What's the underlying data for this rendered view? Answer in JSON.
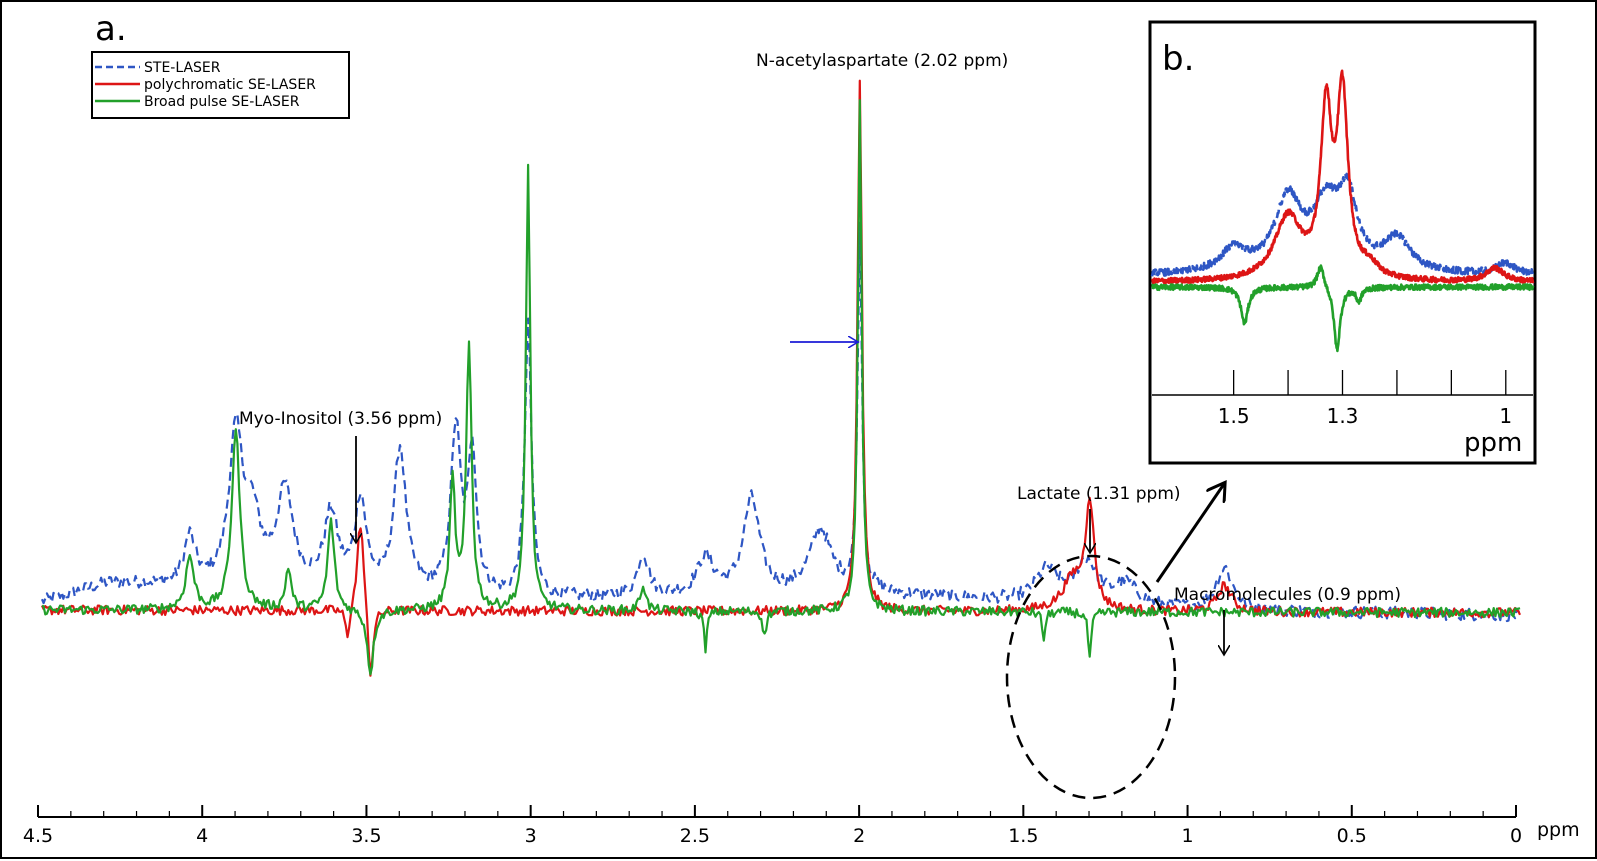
{
  "chart_data": [
    {
      "panel_label": "a.",
      "type": "line",
      "xlabel": "ppm",
      "x_reversed": true,
      "xlim": [
        4.5,
        0
      ],
      "xticks": [
        "4.5",
        "4",
        "3.5",
        "3",
        "2.5",
        "2",
        "1.5",
        "1",
        "0.5",
        "0"
      ],
      "ylim": [
        -0.25,
        1.0
      ],
      "grid": false,
      "legend": {
        "placement": "top-left",
        "entries": [
          "STE-LASER",
          "polychromatic SE-LASER",
          "Broad pulse SE-LASER"
        ]
      },
      "series": [
        {
          "name": "STE-LASER",
          "color": "#2e56c4",
          "style": "dashed",
          "baseline": 0.02,
          "baseline_end": -0.01,
          "noise": 0.012,
          "offset_points": [
            [
              4.5,
              0.015
            ],
            [
              4.3,
              0.05
            ],
            [
              3.0,
              0.02
            ],
            [
              2.0,
              0.03
            ],
            [
              1.0,
              0.0
            ],
            [
              0.0,
              -0.01
            ]
          ],
          "peaks": [
            [
              4.05,
              0.09,
              0.02
            ],
            [
              3.91,
              0.28,
              0.025
            ],
            [
              3.86,
              0.12,
              0.03
            ],
            [
              3.76,
              0.18,
              0.03
            ],
            [
              3.62,
              0.14,
              0.025
            ],
            [
              3.53,
              0.17,
              0.02
            ],
            [
              3.41,
              0.27,
              0.022
            ],
            [
              3.24,
              0.31,
              0.018
            ],
            [
              3.19,
              0.27,
              0.015
            ],
            [
              3.02,
              0.52,
              0.012
            ],
            [
              2.67,
              0.08,
              0.02
            ],
            [
              2.48,
              0.07,
              0.03
            ],
            [
              2.34,
              0.18,
              0.03
            ],
            [
              2.13,
              0.12,
              0.04
            ],
            [
              2.01,
              0.68,
              0.008
            ],
            [
              1.44,
              0.06,
              0.04
            ],
            [
              1.32,
              0.08,
              0.04
            ],
            [
              1.2,
              0.04,
              0.04
            ],
            [
              0.9,
              0.08,
              0.03
            ]
          ]
        },
        {
          "name": "polychromatic SE-LASER",
          "color": "#dd1515",
          "style": "solid",
          "baseline": 0.0,
          "noise": 0.009,
          "offset_points": [
            [
              4.5,
              0.0
            ],
            [
              0.0,
              -0.005
            ]
          ],
          "peaks": [
            [
              3.53,
              0.18,
              0.012
            ],
            [
              3.5,
              -0.14,
              0.01
            ],
            [
              3.57,
              -0.06,
              0.008
            ],
            [
              2.01,
              1.0,
              0.008
            ],
            [
              1.36,
              0.06,
              0.04
            ],
            [
              1.31,
              0.2,
              0.015
            ],
            [
              0.9,
              0.05,
              0.025
            ]
          ]
        },
        {
          "name": "Broad pulse SE-LASER",
          "color": "#22a02a",
          "style": "solid",
          "baseline": 0.0,
          "noise": 0.009,
          "offset_points": [
            [
              4.5,
              0.0
            ],
            [
              0.0,
              -0.005
            ]
          ],
          "peaks": [
            [
              4.05,
              0.1,
              0.015
            ],
            [
              3.91,
              0.34,
              0.015
            ],
            [
              3.75,
              0.08,
              0.01
            ],
            [
              3.62,
              0.17,
              0.012
            ],
            [
              3.5,
              -0.12,
              0.012
            ],
            [
              3.2,
              0.5,
              0.01
            ],
            [
              3.25,
              0.24,
              0.01
            ],
            [
              3.02,
              0.85,
              0.008
            ],
            [
              2.67,
              0.05,
              0.01
            ],
            [
              2.48,
              -0.07,
              0.006
            ],
            [
              2.3,
              -0.05,
              0.006
            ],
            [
              2.01,
              0.96,
              0.007
            ],
            [
              1.45,
              -0.05,
              0.006
            ],
            [
              1.31,
              -0.09,
              0.006
            ]
          ]
        }
      ],
      "annotations": [
        {
          "text": "Myo-Inositol (3.56 ppm)",
          "x": 3.56
        },
        {
          "text": "N-acetylaspartate (2.02 ppm)",
          "x": 2.02
        },
        {
          "text": "Lactate (1.31 ppm)",
          "x": 1.31
        },
        {
          "text": "Macromolecules (0.9 ppm)",
          "x": 0.9
        }
      ]
    },
    {
      "panel_label": "b.",
      "type": "line",
      "xlabel": "ppm",
      "x_reversed": true,
      "xlim": [
        1.65,
        0.95
      ],
      "xticks": [
        "1.5",
        "1.3",
        "1"
      ],
      "xtick_values": [
        1.5,
        1.3,
        1.0
      ],
      "minor_ticks": [
        1.5,
        1.4,
        1.3,
        1.2,
        1.1,
        1.0
      ],
      "ylim": [
        -0.2,
        1.0
      ],
      "series": [
        {
          "name": "STE-LASER",
          "color": "#2e56c4",
          "style": "dashed",
          "baseline": 0.05,
          "noise": 0.015,
          "peaks": [
            [
              1.5,
              0.1,
              0.03
            ],
            [
              1.4,
              0.32,
              0.03
            ],
            [
              1.33,
              0.28,
              0.03
            ],
            [
              1.29,
              0.3,
              0.02
            ],
            [
              1.2,
              0.15,
              0.03
            ],
            [
              1.0,
              0.05,
              0.02
            ]
          ]
        },
        {
          "name": "polychromatic SE-LASER",
          "color": "#dd1515",
          "style": "solid",
          "baseline": 0.02,
          "noise": 0.012,
          "peaks": [
            [
              1.4,
              0.28,
              0.03
            ],
            [
              1.33,
              0.72,
              0.012
            ],
            [
              1.3,
              0.8,
              0.012
            ],
            [
              1.25,
              0.05,
              0.02
            ],
            [
              1.02,
              0.06,
              0.02
            ]
          ]
        },
        {
          "name": "Broad pulse SE-LASER",
          "color": "#22a02a",
          "style": "solid",
          "baseline": 0.0,
          "noise": 0.012,
          "peaks": [
            [
              1.48,
              -0.16,
              0.008
            ],
            [
              1.31,
              -0.28,
              0.007
            ],
            [
              1.34,
              0.1,
              0.008
            ],
            [
              1.27,
              -0.06,
              0.006
            ]
          ]
        }
      ]
    }
  ]
}
